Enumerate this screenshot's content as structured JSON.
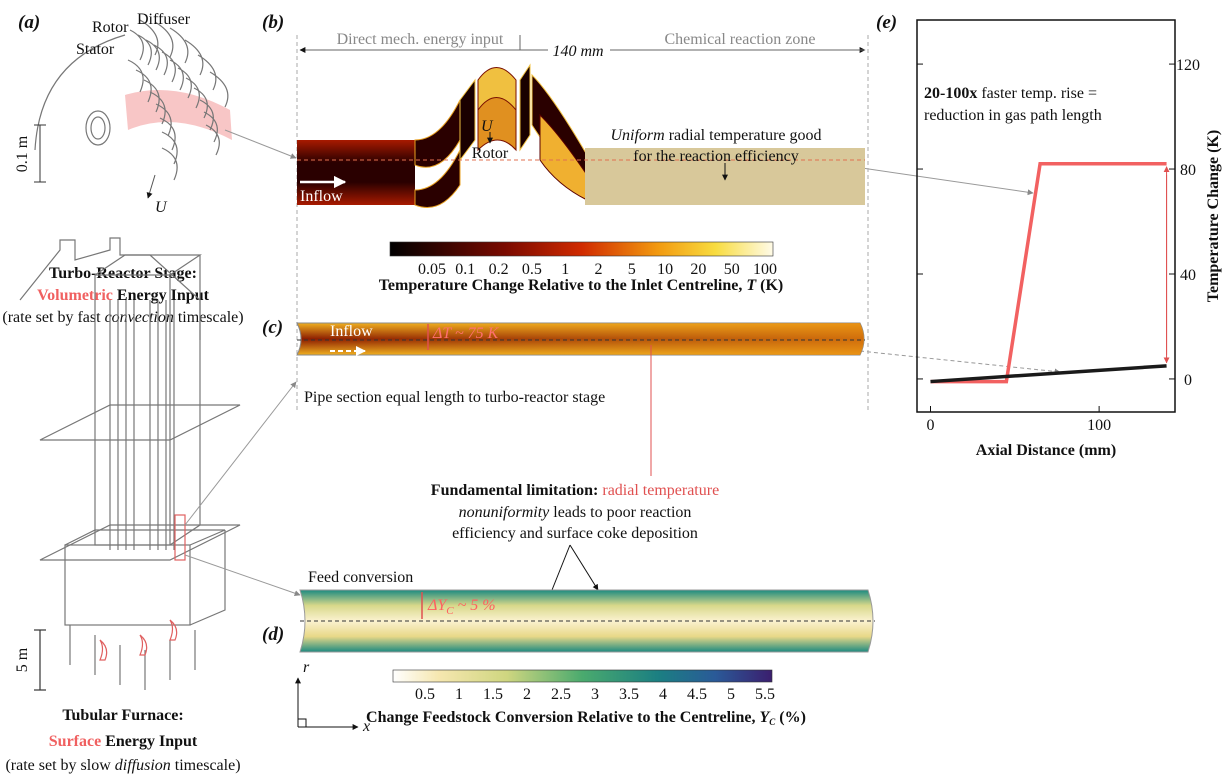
{
  "panels": {
    "a": {
      "label": "(a)",
      "rotor": "Rotor",
      "diffuser": "Diffuser",
      "stator": "Stator",
      "u": "U",
      "scale": "0.1 m",
      "title": "Turbo-Reactor Stage:",
      "highlight": "Volumetric",
      "title_rest": " Energy Input",
      "note_pre": "(rate set by fast ",
      "note_em": "convection",
      "note_post": " timescale)"
    },
    "furnace": {
      "scale": "5 m",
      "title": "Tubular Furnace:",
      "highlight": "Surface",
      "title_rest": " Energy Input",
      "note_pre": "(rate set by slow ",
      "note_em": "diffusion",
      "note_post": " timescale)"
    },
    "b": {
      "label": "(b)",
      "left_zone": "Direct mech. energy input",
      "length": "140 mm",
      "right_zone": "Chemical reaction zone",
      "note_em": "Uniform",
      "note_rest": " radial temperature good",
      "note_line2": "for the reaction efficiency",
      "u": "U",
      "rotor": "Rotor",
      "inflow": "Inflow",
      "colorbar": {
        "ticks": [
          "0.05",
          "0.1",
          "0.2",
          "0.5",
          "1",
          "2",
          "5",
          "10",
          "20",
          "50",
          "100"
        ],
        "title_pre": "Temperature Change Relative to the Inlet Centreline, ",
        "title_sym": "T",
        "title_post": " (K)"
      }
    },
    "c": {
      "label": "(c)",
      "inflow": "Inflow",
      "delta": "ΔT ~ 75 K",
      "caption": "Pipe section equal length to turbo-reactor stage"
    },
    "limitation": {
      "bold": "Fundamental limitation:",
      "red": " radial temperature",
      "em": "nonuniformity",
      "rest": " leads to poor reaction",
      "line3": "efficiency and surface coke deposition"
    },
    "d": {
      "label": "(d)",
      "feed": "Feed conversion",
      "delta_pre": "ΔY",
      "delta_sub": "C",
      "delta_post": " ~ 5 %",
      "axis_r": "r",
      "axis_x": "x",
      "colorbar": {
        "ticks": [
          "0.5",
          "1",
          "1.5",
          "2",
          "2.5",
          "3",
          "3.5",
          "4",
          "4.5",
          "5",
          "5.5"
        ],
        "title_pre": "Change Feedstock Conversion Relative to the Centreline, ",
        "title_sym": "Y",
        "title_sub": "C",
        "title_post": " (%)"
      }
    }
  },
  "chart_data": {
    "type": "line",
    "label": "(e)",
    "annotation_bold": "20-100x",
    "annotation": " faster temp. rise =",
    "annotation_line2": "reduction in gas path length",
    "xlabel": "Axial Distance (mm)",
    "ylabel": "Temperature Change (K)",
    "xlim": [
      -8,
      145
    ],
    "xticks": [
      0,
      100
    ],
    "ylim": [
      -12.6,
      136.8
    ],
    "yticks": [
      0,
      40,
      80,
      120
    ],
    "series": [
      {
        "color": "#f26161",
        "x": [
          0,
          45,
          65,
          140
        ],
        "values": [
          -1,
          -1,
          82,
          82
        ]
      },
      {
        "color": "#1a1a1a",
        "x": [
          0,
          140
        ],
        "values": [
          -1,
          5
        ]
      }
    ]
  }
}
